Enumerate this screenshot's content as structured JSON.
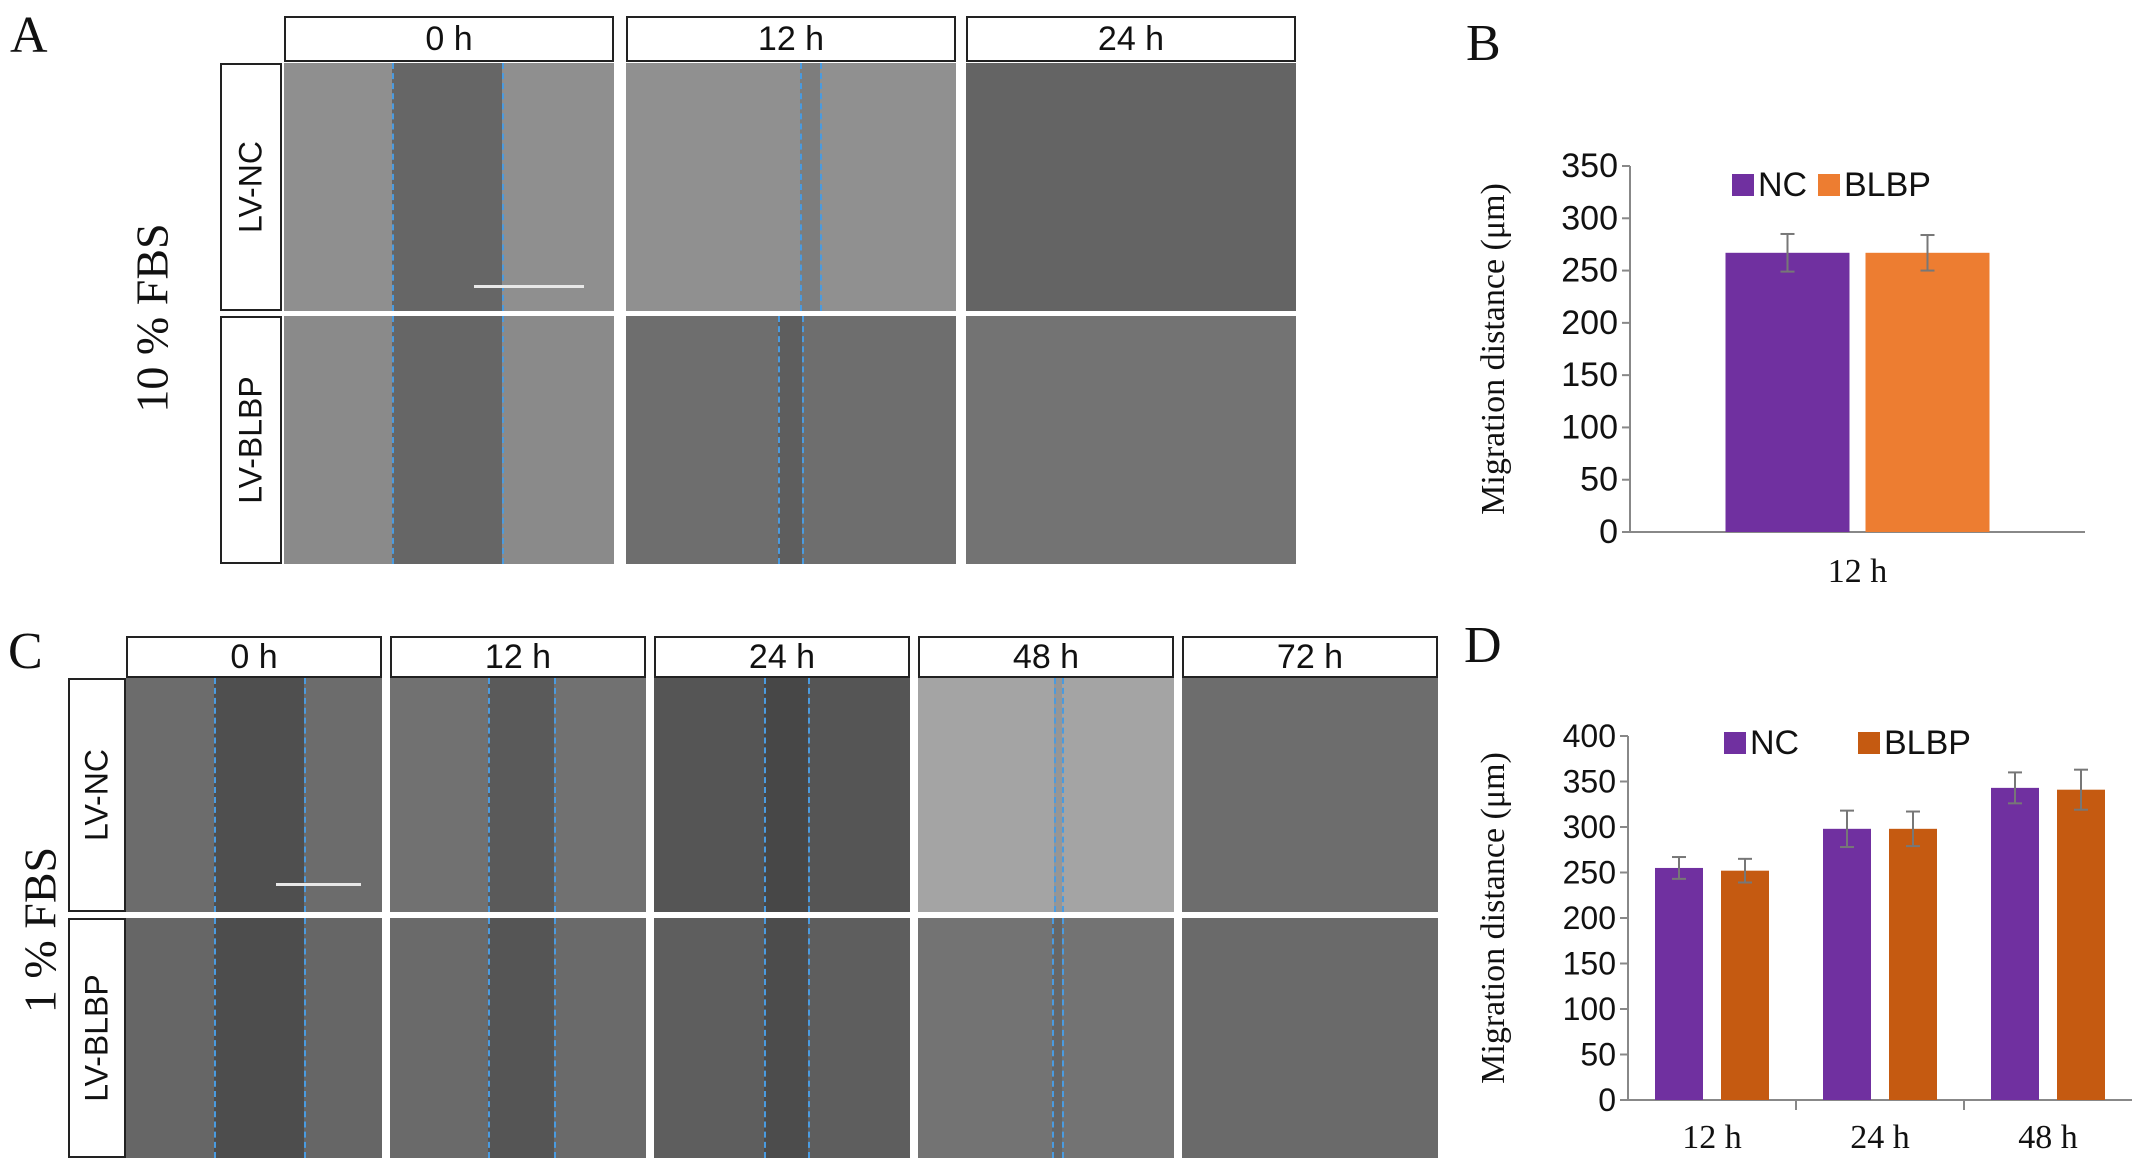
{
  "panels": {
    "A": {
      "letter": "A",
      "condition": "10 % FBS",
      "time_headers": [
        "0 h",
        "12 h",
        "24 h"
      ],
      "row_labels": [
        "LV-NC",
        "LV-BLBP"
      ]
    },
    "C": {
      "letter": "C",
      "condition": "1 % FBS",
      "time_headers": [
        "0 h",
        "12 h",
        "24 h",
        "48 h",
        "72 h"
      ],
      "row_labels": [
        "LV-NC",
        "LV-BLBP"
      ]
    },
    "B": {
      "letter": "B"
    },
    "D": {
      "letter": "D"
    }
  },
  "colors": {
    "nc": "#7030a0",
    "blbp_B": "#ed7d31",
    "blbp_D": "#c55a11",
    "scratch_line": "#4a9be0"
  },
  "chart_data": [
    {
      "id": "B",
      "type": "bar",
      "categories": [
        "12 h"
      ],
      "series": [
        {
          "name": "NC",
          "values": [
            267
          ],
          "errors": [
            18
          ]
        },
        {
          "name": "BLBP",
          "values": [
            267
          ],
          "errors": [
            17
          ]
        }
      ],
      "ylabel": "Migration distance (μm)",
      "xlabel": "",
      "ylim": [
        0,
        350
      ],
      "yticks": [
        "0",
        "50",
        "100",
        "150",
        "200",
        "250",
        "300",
        "350"
      ],
      "legend": "top",
      "grid": false
    },
    {
      "id": "D",
      "type": "bar",
      "categories": [
        "12 h",
        "24 h",
        "48 h"
      ],
      "series": [
        {
          "name": "NC",
          "values": [
            255,
            298,
            343
          ],
          "errors": [
            12,
            20,
            17
          ]
        },
        {
          "name": "BLBP",
          "values": [
            252,
            298,
            341
          ],
          "errors": [
            13,
            19,
            22
          ]
        }
      ],
      "ylabel": "Migration distance (μm)",
      "xlabel": "",
      "ylim": [
        0,
        400
      ],
      "yticks": [
        "0",
        "50",
        "100",
        "150",
        "200",
        "250",
        "300",
        "350",
        "400"
      ],
      "legend": "top",
      "grid": false
    }
  ]
}
